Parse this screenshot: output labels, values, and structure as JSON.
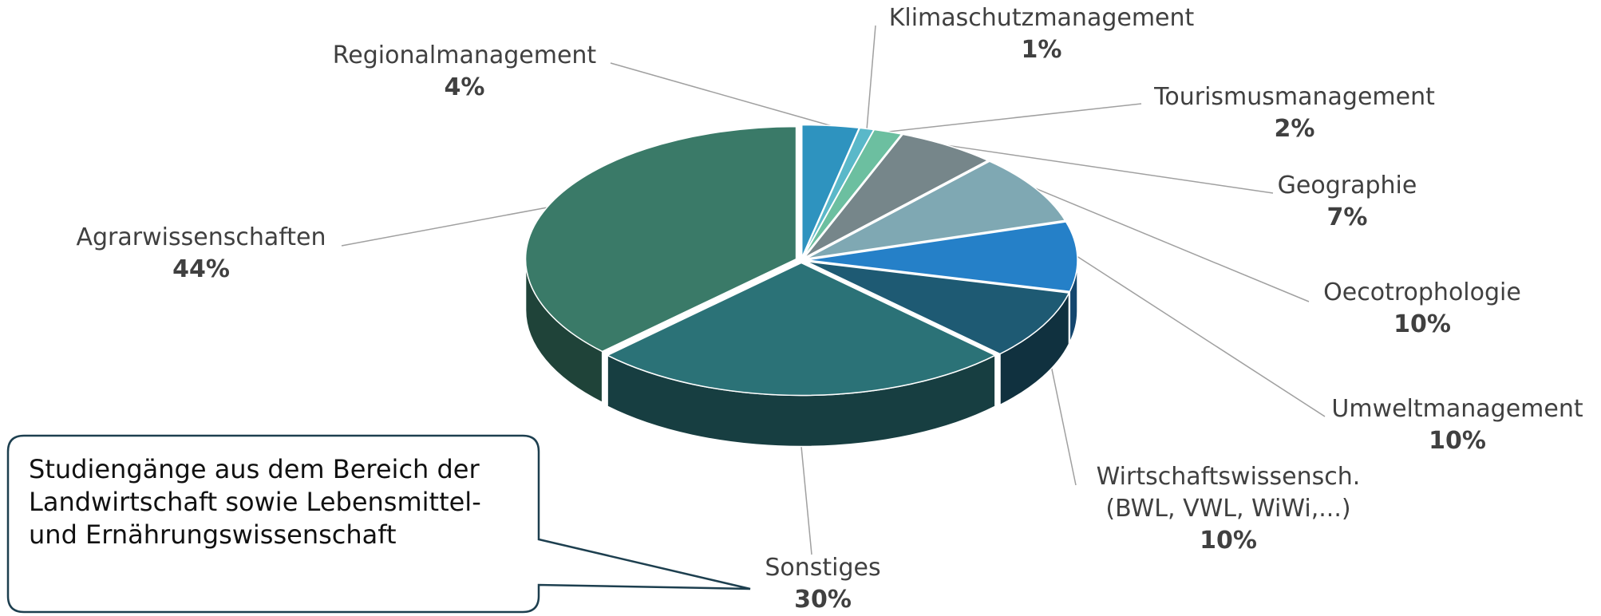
{
  "chart_data": {
    "type": "pie",
    "categories": [
      "Regionalmanagement",
      "Klimaschutzmanagement",
      "Tourismusmanagement",
      "Geographie",
      "Oecotrophologie",
      "Umweltmanagement",
      "Wirtschaftswissensch. (BWL, VWL, WiWi,...)",
      "Sonstiges",
      "Agrarwissenschaften"
    ],
    "values": [
      4,
      1,
      2,
      7,
      10,
      10,
      10,
      30,
      44
    ],
    "value_labels": [
      "4%",
      "1%",
      "2%",
      "7%",
      "10%",
      "10%",
      "10%",
      "30%",
      "44%"
    ],
    "colors": [
      "#2e93bf",
      "#5ab8c9",
      "#6cbfa0",
      "#76868a",
      "#7fa8b3",
      "#2580c8",
      "#1e5a73",
      "#2b7277",
      "#3a7a68"
    ],
    "annotation": "Studiengänge aus dem Bereich der Landwirtschaft sowie Lebensmittel- und Ernährungswissenschaft"
  }
}
